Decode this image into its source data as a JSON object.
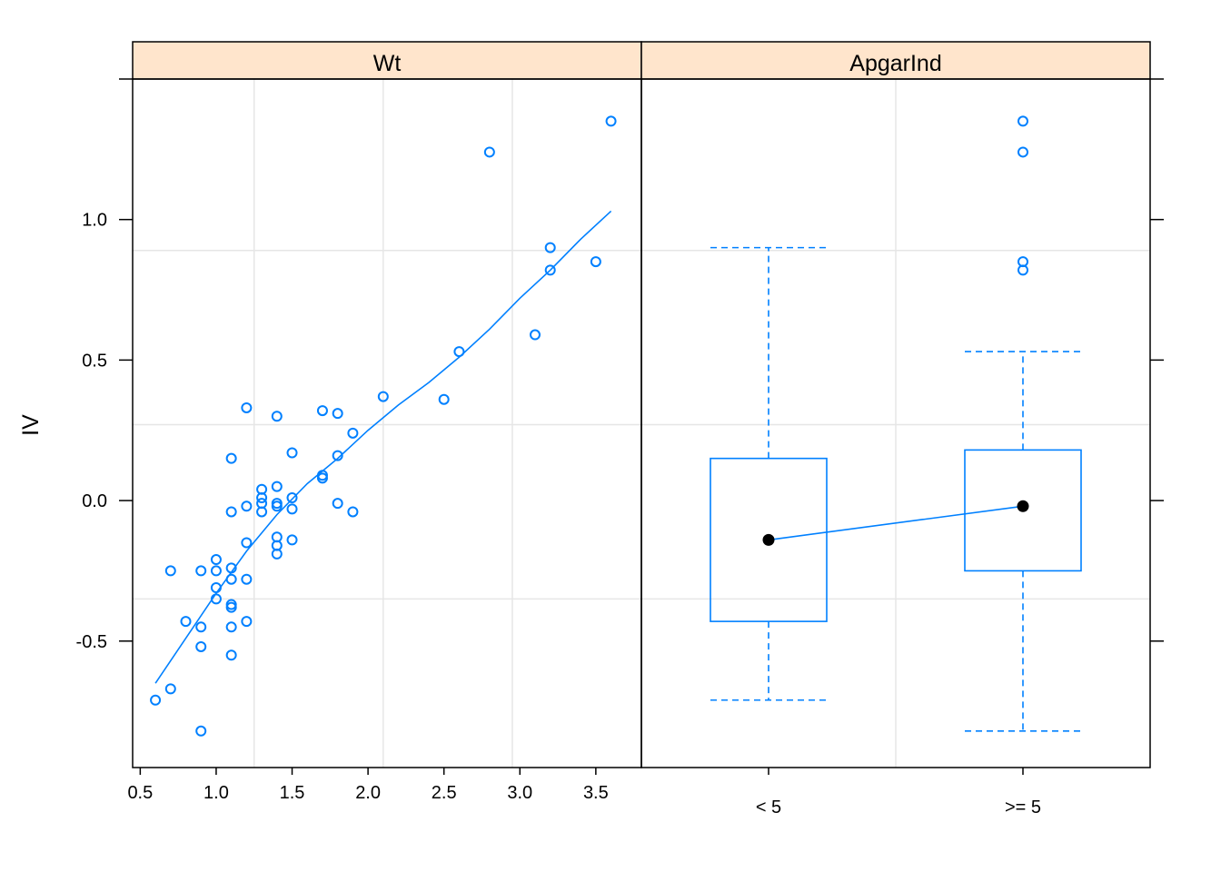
{
  "chart_data": {
    "type": "scatter",
    "ylabel": "IV",
    "ylim": [
      -0.95,
      1.5
    ],
    "y_ticks": [
      -0.5,
      0.0,
      0.5,
      1.0
    ],
    "y_tick_labels": [
      "-0.5",
      "0.0",
      "0.5",
      "1.0"
    ],
    "colors": {
      "series": "#0080ff",
      "strip": "#ffe5cc",
      "grid": "#e6e6e6",
      "median": "#000000"
    },
    "panels": [
      {
        "strip_label": "Wt",
        "type": "scatter",
        "xlim": [
          0.45,
          3.8
        ],
        "x_ticks": [
          0.5,
          1.0,
          1.5,
          2.0,
          2.5,
          3.0,
          3.5
        ],
        "x_tick_labels": [
          "0.5",
          "1.0",
          "1.5",
          "2.0",
          "2.5",
          "3.0",
          "3.5"
        ],
        "x_grid": [
          1.25,
          2.1,
          2.95
        ],
        "y_grid": [
          -0.35,
          0.27,
          0.89
        ],
        "points": [
          [
            0.6,
            -0.71
          ],
          [
            0.7,
            -0.67
          ],
          [
            0.7,
            -0.25
          ],
          [
            0.8,
            -0.43
          ],
          [
            0.9,
            -0.82
          ],
          [
            0.9,
            -0.52
          ],
          [
            0.9,
            -0.45
          ],
          [
            0.9,
            -0.25
          ],
          [
            1.0,
            -0.35
          ],
          [
            1.0,
            -0.31
          ],
          [
            1.0,
            -0.25
          ],
          [
            1.0,
            -0.21
          ],
          [
            1.1,
            -0.55
          ],
          [
            1.1,
            -0.45
          ],
          [
            1.1,
            -0.38
          ],
          [
            1.1,
            -0.37
          ],
          [
            1.1,
            -0.28
          ],
          [
            1.1,
            -0.24
          ],
          [
            1.1,
            -0.04
          ],
          [
            1.1,
            0.15
          ],
          [
            1.2,
            -0.43
          ],
          [
            1.2,
            -0.28
          ],
          [
            1.2,
            -0.15
          ],
          [
            1.2,
            -0.02
          ],
          [
            1.2,
            0.33
          ],
          [
            1.3,
            -0.04
          ],
          [
            1.3,
            -0.01
          ],
          [
            1.3,
            0.01
          ],
          [
            1.3,
            0.04
          ],
          [
            1.4,
            -0.19
          ],
          [
            1.4,
            -0.16
          ],
          [
            1.4,
            -0.13
          ],
          [
            1.4,
            -0.02
          ],
          [
            1.4,
            -0.01
          ],
          [
            1.4,
            0.05
          ],
          [
            1.4,
            0.3
          ],
          [
            1.5,
            -0.14
          ],
          [
            1.5,
            -0.03
          ],
          [
            1.5,
            0.01
          ],
          [
            1.5,
            0.17
          ],
          [
            1.7,
            0.08
          ],
          [
            1.7,
            0.09
          ],
          [
            1.7,
            0.32
          ],
          [
            1.8,
            -0.01
          ],
          [
            1.8,
            0.16
          ],
          [
            1.8,
            0.31
          ],
          [
            1.9,
            -0.04
          ],
          [
            1.9,
            0.24
          ],
          [
            2.1,
            0.37
          ],
          [
            2.5,
            0.36
          ],
          [
            2.6,
            0.53
          ],
          [
            2.8,
            1.24
          ],
          [
            3.1,
            0.59
          ],
          [
            3.2,
            0.82
          ],
          [
            3.2,
            0.9
          ],
          [
            3.5,
            0.85
          ],
          [
            3.6,
            1.35
          ]
        ],
        "smooth_line": [
          [
            0.6,
            -0.65
          ],
          [
            0.8,
            -0.49
          ],
          [
            1.0,
            -0.33
          ],
          [
            1.2,
            -0.18
          ],
          [
            1.4,
            -0.05
          ],
          [
            1.6,
            0.06
          ],
          [
            1.8,
            0.15
          ],
          [
            2.0,
            0.25
          ],
          [
            2.2,
            0.34
          ],
          [
            2.4,
            0.42
          ],
          [
            2.6,
            0.51
          ],
          [
            2.8,
            0.61
          ],
          [
            3.0,
            0.72
          ],
          [
            3.2,
            0.82
          ],
          [
            3.4,
            0.93
          ],
          [
            3.6,
            1.03
          ]
        ]
      },
      {
        "strip_label": "ApgarInd",
        "type": "box",
        "categories": [
          "< 5",
          ">= 5"
        ],
        "x_grid": [
          1.5
        ],
        "y_grid": [
          -0.35,
          0.27,
          0.89
        ],
        "boxes": [
          {
            "category": "< 5",
            "whisker_low": -0.71,
            "q1": -0.43,
            "median": -0.14,
            "q3": 0.15,
            "whisker_high": 0.9,
            "outliers": []
          },
          {
            "category": ">= 5",
            "whisker_low": -0.82,
            "q1": -0.25,
            "median": -0.02,
            "q3": 0.18,
            "whisker_high": 0.53,
            "outliers": [
              0.82,
              0.85,
              1.24,
              1.35
            ]
          }
        ]
      }
    ]
  }
}
